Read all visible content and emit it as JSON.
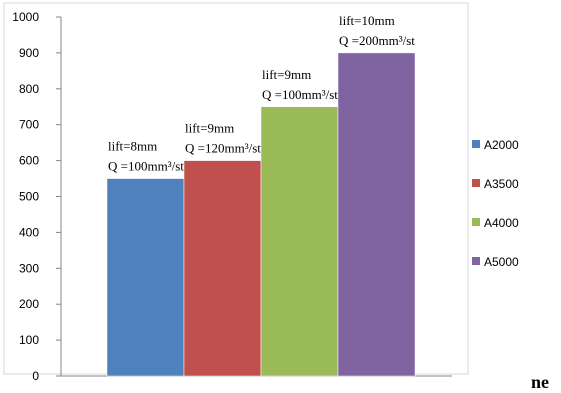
{
  "chart_data": {
    "type": "bar",
    "title": "",
    "xlabel": "",
    "ylabel": "",
    "ylim": [
      0,
      1000
    ],
    "yticks": [
      0,
      100,
      200,
      300,
      400,
      500,
      600,
      700,
      800,
      900,
      1000
    ],
    "grid": false,
    "legend_position": "right",
    "series": [
      {
        "name": "A2000",
        "value": 550,
        "color": "#4f81bd",
        "annotation": [
          "lift=8mm",
          "Q =100mm³/st"
        ]
      },
      {
        "name": "A3500",
        "value": 600,
        "color": "#c0504d",
        "annotation": [
          "lift=9mm",
          "Q =120mm³/st"
        ]
      },
      {
        "name": "A4000",
        "value": 750,
        "color": "#9bbb59",
        "annotation": [
          "lift=9mm",
          "Q =100mm³/st"
        ]
      },
      {
        "name": "A5000",
        "value": 900,
        "color": "#8064a2",
        "annotation": [
          "lift=10mm",
          "Q =200mm³/st"
        ]
      }
    ]
  },
  "footer_text": "ne"
}
